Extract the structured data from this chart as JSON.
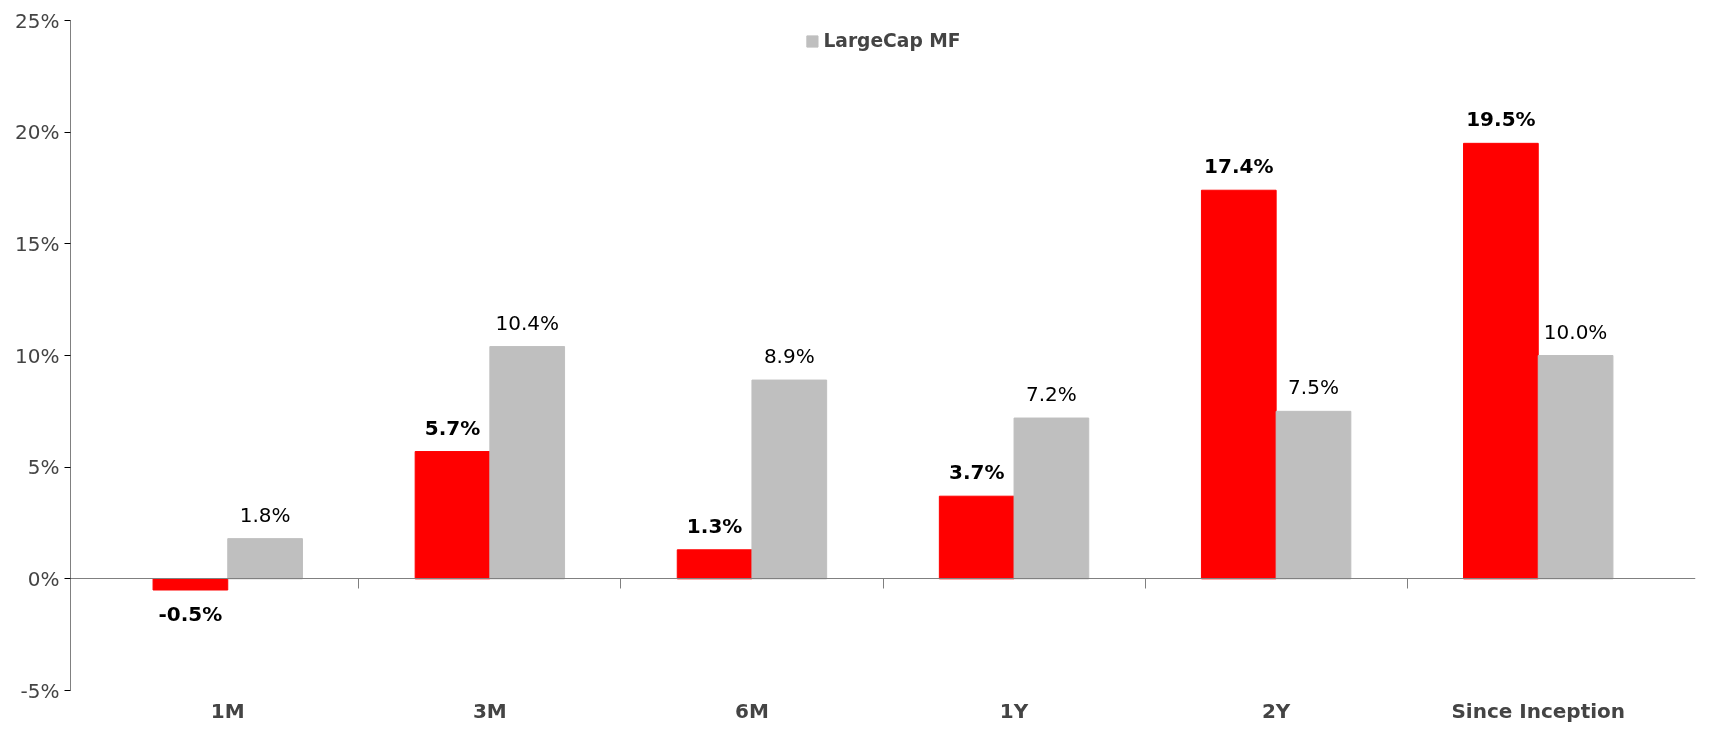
{
  "chart_data": {
    "type": "bar",
    "categories": [
      "1M",
      "3M",
      "6M",
      "1Y",
      "2Y",
      "Since Inception"
    ],
    "series": [
      {
        "color": "#ff0000",
        "values": [
          -0.5,
          5.7,
          1.3,
          3.7,
          17.4,
          19.5
        ],
        "value_labels": [
          "-0.5%",
          "5.7%",
          "1.3%",
          "3.7%",
          "17.4%",
          "19.5%"
        ]
      },
      {
        "name": "LargeCap MF",
        "color": "#bfbfbf",
        "values": [
          1.8,
          10.4,
          8.9,
          7.2,
          7.5,
          10.0
        ],
        "value_labels": [
          "1.8%",
          "10.4%",
          "8.9%",
          "7.2%",
          "7.5%",
          "10.0%"
        ]
      }
    ],
    "ylim": [
      -5,
      25
    ],
    "yticks": [
      {
        "value": -5,
        "label": "-5%"
      },
      {
        "value": 0,
        "label": "0%"
      },
      {
        "value": 5,
        "label": "5%"
      },
      {
        "value": 10,
        "label": "10%"
      },
      {
        "value": 15,
        "label": "15%"
      },
      {
        "value": 20,
        "label": "20%"
      },
      {
        "value": 25,
        "label": "25%"
      }
    ],
    "legend": "top"
  }
}
